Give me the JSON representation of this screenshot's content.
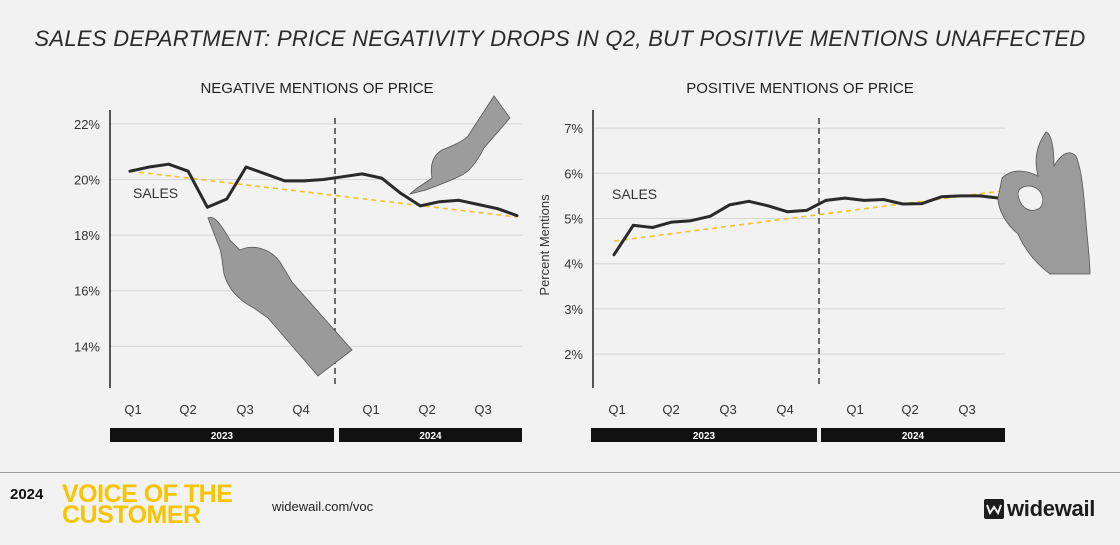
{
  "title": "SALES DEPARTMENT: PRICE NEGATIVITY DROPS IN Q2, BUT POSITIVE MENTIONS UNAFFECTED",
  "chart_data": [
    {
      "type": "line",
      "title": "NEGATIVE MENTIONS OF PRICE",
      "ylabel": "",
      "ylim": [
        12.5,
        22.5
      ],
      "yticks": [
        14,
        16,
        18,
        20,
        22
      ],
      "ytick_labels": [
        "14%",
        "16%",
        "18%",
        "20%",
        "22%"
      ],
      "quarters": [
        "Q1",
        "Q2",
        "Q3",
        "Q4",
        "Q1",
        "Q2",
        "Q3"
      ],
      "year_bands": [
        "2023",
        "2024"
      ],
      "series_label": "SALES",
      "series": [
        {
          "values": [
            20.3,
            20.45,
            20.55,
            20.3,
            19.0,
            19.3,
            20.45,
            20.2,
            19.95,
            19.95,
            20.0,
            20.1,
            20.2,
            20.05,
            19.5,
            19.05,
            19.2,
            19.25,
            19.1,
            18.95,
            18.7
          ]
        }
      ],
      "trend": [
        20.3,
        18.65
      ],
      "grid": true
    },
    {
      "type": "line",
      "title": "POSITIVE MENTIONS OF PRICE",
      "ylabel": "Percent Mentions",
      "ylim": [
        1.25,
        7.4
      ],
      "yticks": [
        2,
        3,
        4,
        5,
        6,
        7
      ],
      "ytick_labels": [
        "2%",
        "3%",
        "4%",
        "5%",
        "6%",
        "7%"
      ],
      "quarters": [
        "Q1",
        "Q2",
        "Q3",
        "Q4",
        "Q1",
        "Q2",
        "Q3"
      ],
      "year_bands": [
        "2023",
        "2024"
      ],
      "series_label": "SALES",
      "series": [
        {
          "values": [
            4.2,
            4.85,
            4.8,
            4.92,
            4.95,
            5.05,
            5.3,
            5.38,
            5.28,
            5.15,
            5.18,
            5.4,
            5.45,
            5.4,
            5.42,
            5.32,
            5.33,
            5.48,
            5.5,
            5.5,
            5.45
          ]
        }
      ],
      "trend": [
        4.5,
        5.6
      ],
      "grid": true
    }
  ],
  "footer": {
    "year": "2024",
    "brand": "VOICE OF THE CUSTOMER",
    "url": "widewail.com/voc",
    "logo_text": "widewail"
  },
  "colors": {
    "line": "#2a2a2a",
    "trend": "#f2c230",
    "grid": "#d6d6d6",
    "band": "#111111",
    "brand_yellow": "#f7c400",
    "background": "#f2f2f2"
  },
  "illustrations": [
    "pointing-hand-icon",
    "ok-hand-icon"
  ]
}
